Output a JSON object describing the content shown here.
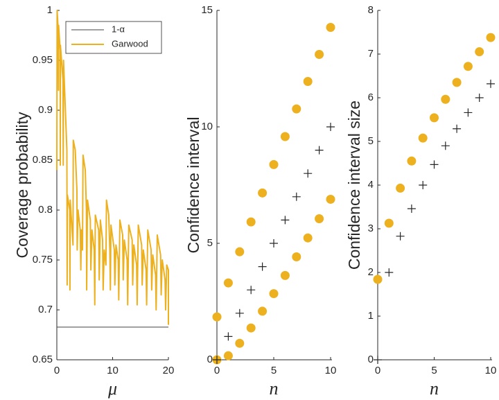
{
  "chart_data": [
    {
      "type": "line",
      "y_label": "Coverage probability",
      "x_label": "μ",
      "xlim": [
        0,
        20
      ],
      "xticks": [
        0,
        10,
        20
      ],
      "ylim": [
        0.65,
        1
      ],
      "yticks": [
        0.65,
        0.7,
        0.75,
        0.8,
        0.85,
        0.9,
        0.95,
        1
      ],
      "legend": "upper left",
      "series": [
        {
          "name": "1-α",
          "color": "#404040",
          "x": [
            0,
            20
          ],
          "values": [
            0.6827,
            0.6827
          ]
        },
        {
          "name": "Garwood",
          "color": "#EDB120",
          "x": [
            0,
            0.05,
            0.2,
            0.3,
            0.32,
            0.6,
            0.62,
            0.65,
            1.1,
            1.15,
            1.2,
            1.8,
            1.85,
            1.9,
            2.3,
            2.35,
            2.4,
            2.9,
            2.95,
            3.3,
            3.6,
            3.65,
            3.8,
            4.2,
            4.3,
            4.4,
            4.6,
            4.7,
            5.1,
            5.3,
            5.35,
            5.5,
            6,
            6.1,
            6.3,
            6.7,
            6.8,
            6.9,
            7.5,
            7.6,
            7.8,
            8.2,
            8.3,
            8.5,
            8.8,
            8.9,
            9.3,
            9.5,
            9.6,
            9.7,
            10.3,
            10.4,
            10.6,
            11,
            11.1,
            11.3,
            11.8,
            11.9,
            12.1,
            12.6,
            12.7,
            12.9,
            13.5,
            13.6,
            13.8,
            14.3,
            14.4,
            14.6,
            15.2,
            15.3,
            15.5,
            16,
            16.1,
            16.3,
            16.9,
            17,
            17.2,
            17.7,
            17.8,
            18,
            18.6,
            18.7,
            18.9,
            19.4,
            19.5,
            19.7,
            20,
            20
          ],
          "values": [
            0.84,
            1,
            0.985,
            0.92,
            0.985,
            0.96,
            0.845,
            0.965,
            0.93,
            0.845,
            0.95,
            0.86,
            0.725,
            0.815,
            0.8,
            0.72,
            0.81,
            0.765,
            0.87,
            0.86,
            0.82,
            0.76,
            0.8,
            0.78,
            0.74,
            0.78,
            0.76,
            0.855,
            0.84,
            0.8,
            0.72,
            0.81,
            0.79,
            0.74,
            0.78,
            0.76,
            0.705,
            0.795,
            0.78,
            0.73,
            0.79,
            0.77,
            0.72,
            0.76,
            0.745,
            0.81,
            0.795,
            0.76,
            0.72,
            0.785,
            0.76,
            0.725,
            0.765,
            0.75,
            0.71,
            0.79,
            0.775,
            0.73,
            0.77,
            0.75,
            0.705,
            0.785,
            0.77,
            0.725,
            0.765,
            0.745,
            0.705,
            0.785,
            0.765,
            0.725,
            0.76,
            0.74,
            0.705,
            0.78,
            0.76,
            0.72,
            0.755,
            0.735,
            0.7,
            0.775,
            0.755,
            0.715,
            0.75,
            0.73,
            0.7,
            0.745,
            0.74,
            0.685
          ]
        }
      ]
    },
    {
      "type": "scatter",
      "y_label": "Confidence interval",
      "x_label": "n",
      "xlim": [
        0,
        10
      ],
      "xticks": [
        0,
        5,
        10
      ],
      "ylim": [
        0,
        15
      ],
      "yticks": [
        0,
        5,
        10,
        15
      ],
      "x": [
        0,
        1,
        2,
        3,
        4,
        5,
        6,
        7,
        8,
        9,
        10
      ],
      "series": [
        {
          "color": "#EDB120",
          "marker": "o",
          "values": [
            0,
            0.173,
            0.708,
            1.367,
            2.086,
            2.84,
            3.62,
            4.419,
            5.232,
            6.057,
            6.891
          ]
        },
        {
          "color": "#EDB120",
          "marker": "o",
          "values": [
            1.841,
            3.3,
            4.638,
            5.918,
            7.163,
            8.382,
            9.584,
            10.77,
            11.95,
            13.11,
            14.27
          ]
        },
        {
          "color": "#262626",
          "marker": "+",
          "values": [
            0,
            1,
            2,
            3,
            4,
            5,
            6,
            7,
            8,
            9,
            10
          ]
        }
      ]
    },
    {
      "type": "scatter",
      "y_label": "Confidence interval size",
      "x_label": "n",
      "xlim": [
        0,
        10
      ],
      "xticks": [
        0,
        5,
        10
      ],
      "ylim": [
        0,
        8
      ],
      "yticks": [
        0,
        1,
        2,
        3,
        4,
        5,
        6,
        7,
        8
      ],
      "x": [
        0,
        1,
        2,
        3,
        4,
        5,
        6,
        7,
        8,
        9,
        10
      ],
      "series": [
        {
          "color": "#EDB120",
          "marker": "o",
          "values": [
            1.841,
            3.127,
            3.93,
            4.551,
            5.077,
            5.542,
            5.964,
            6.351,
            6.718,
            7.053,
            7.379
          ]
        },
        {
          "color": "#262626",
          "marker": "+",
          "values": [
            0,
            2,
            2.83,
            3.46,
            4,
            4.47,
            4.9,
            5.29,
            5.66,
            6,
            6.32
          ]
        }
      ]
    }
  ]
}
